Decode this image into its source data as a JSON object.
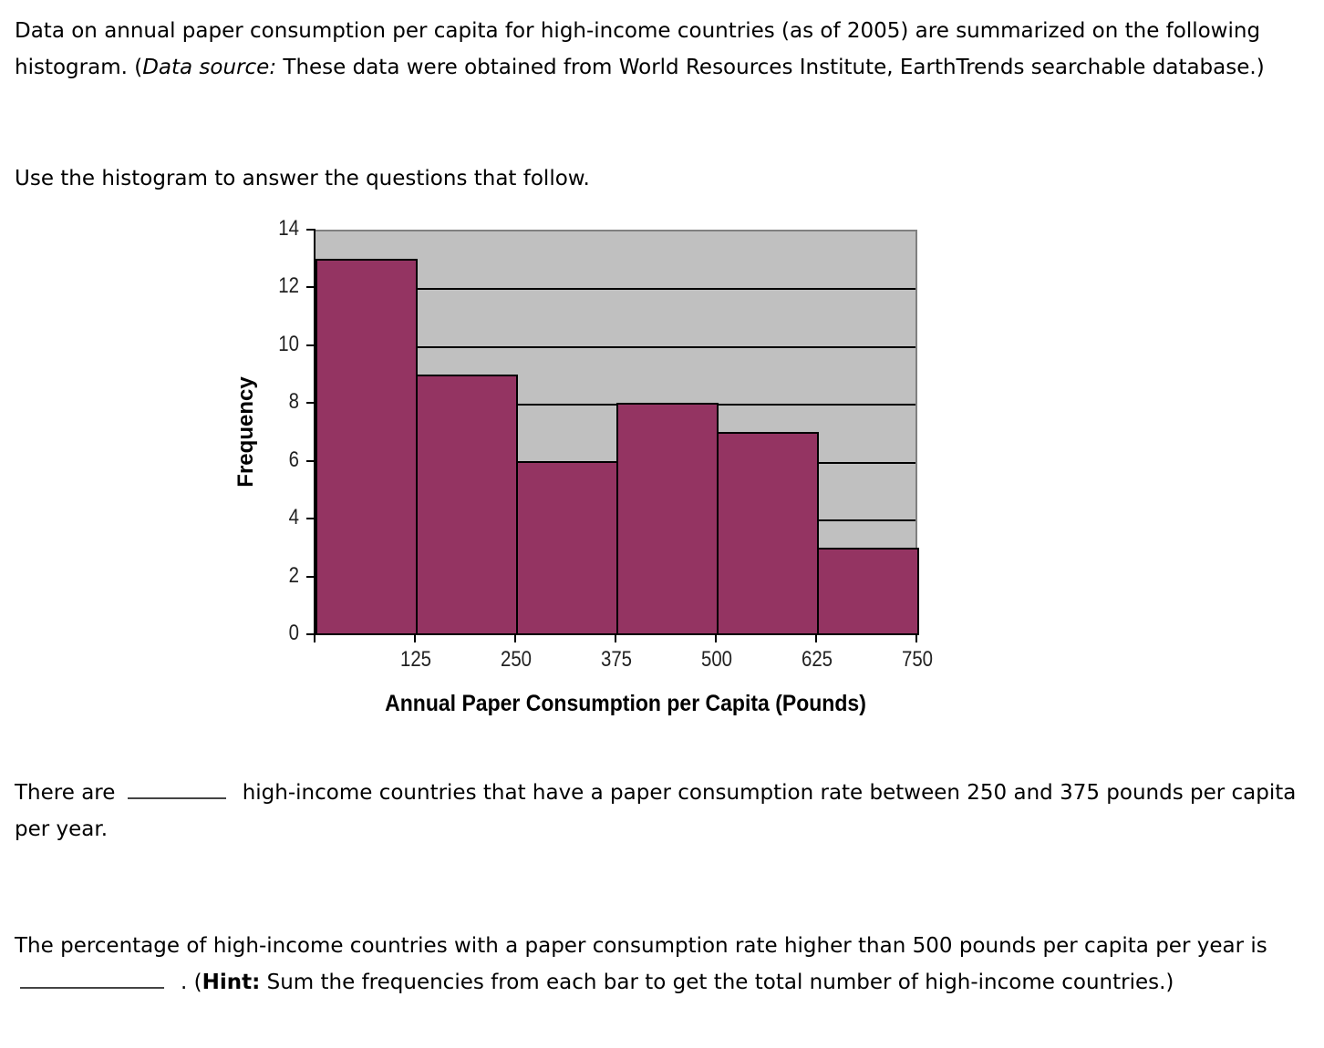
{
  "intro": {
    "part1": "Data on annual paper consumption per capita for high-income countries (as of 2005) are summarized on the following histogram. (",
    "source_label": "Data source:",
    "part2": " These data were obtained from World Resources Institute, EarthTrends searchable database.)"
  },
  "instruction": "Use the histogram to answer the questions that follow.",
  "question1": {
    "before": "There are",
    "after": "high-income countries that have a paper consumption rate between 250 and 375 pounds per capita per year.",
    "answer_value": ""
  },
  "question2": {
    "before": "The percentage of high-income countries with a paper consumption rate higher than 500 pounds per capita per year is",
    "after_punct": ". (",
    "hint_label": "Hint:",
    "hint_text": " Sum the frequencies from each bar to get the total number of high-income countries.)",
    "answer_value": ""
  },
  "colors": {
    "bar": "#943462",
    "plot_background": "#c0c0c0",
    "gridline": "#000000"
  },
  "chart_data": {
    "type": "bar",
    "subtype": "histogram",
    "title": "",
    "xlabel": "Annual Paper Consumption per Capita (Pounds)",
    "ylabel": "Frequency",
    "bins": [
      [
        0,
        125
      ],
      [
        125,
        250
      ],
      [
        250,
        375
      ],
      [
        375,
        500
      ],
      [
        500,
        625
      ],
      [
        625,
        750
      ]
    ],
    "categories": [
      "0-125",
      "125-250",
      "250-375",
      "375-500",
      "500-625",
      "625-750"
    ],
    "values": [
      13,
      9,
      6,
      8,
      7,
      3
    ],
    "x_tick_labels": [
      "125",
      "250",
      "375",
      "500",
      "625",
      "750"
    ],
    "y_tick_labels": [
      "0",
      "2",
      "4",
      "6",
      "8",
      "10",
      "12",
      "14"
    ],
    "xlim": [
      0,
      750
    ],
    "ylim": [
      0,
      14
    ],
    "grid": "horizontal",
    "legend": "none"
  }
}
